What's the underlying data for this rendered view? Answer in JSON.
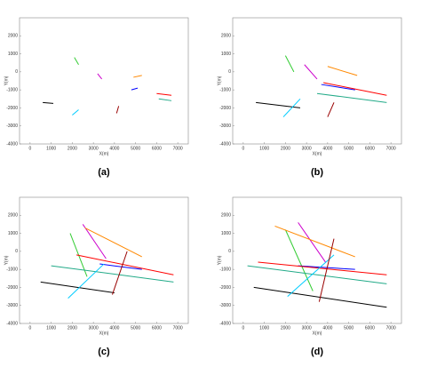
{
  "chart_data": [
    {
      "type": "line",
      "caption": "(a)",
      "x_label": "X(m)",
      "y_label": "Y(m)",
      "xlim": [
        -500,
        7500
      ],
      "ylim": [
        -4000,
        3000
      ],
      "xticks": [
        0,
        1000,
        2000,
        3000,
        4000,
        5000,
        6000,
        7000
      ],
      "yticks": [
        -4000,
        -3000,
        -2000,
        -1000,
        0,
        1000,
        2000
      ],
      "series": [
        {
          "color": "#33cc33",
          "x": [
            2100,
            2300
          ],
          "values": [
            800,
            400
          ]
        },
        {
          "color": "#cc00cc",
          "x": [
            3200,
            3400
          ],
          "values": [
            -100,
            -400
          ]
        },
        {
          "color": "#ff8800",
          "x": [
            4900,
            5300
          ],
          "values": [
            -300,
            -200
          ]
        },
        {
          "color": "#0000ff",
          "x": [
            4800,
            5100
          ],
          "values": [
            -1000,
            -900
          ]
        },
        {
          "color": "#ff0000",
          "x": [
            6000,
            6700
          ],
          "values": [
            -1200,
            -1300
          ]
        },
        {
          "color": "#22aa88",
          "x": [
            6100,
            6700
          ],
          "values": [
            -1500,
            -1600
          ]
        },
        {
          "color": "#000000",
          "x": [
            600,
            1100
          ],
          "values": [
            -1700,
            -1750
          ]
        },
        {
          "color": "#00ccff",
          "x": [
            2000,
            2300
          ],
          "values": [
            -2400,
            -2100
          ]
        },
        {
          "color": "#990000",
          "x": [
            4100,
            4200
          ],
          "values": [
            -2300,
            -1900
          ]
        }
      ]
    },
    {
      "type": "line",
      "caption": "(b)",
      "x_label": "X(m)",
      "y_label": "Y(m)",
      "xlim": [
        -500,
        7500
      ],
      "ylim": [
        -4000,
        3000
      ],
      "xticks": [
        0,
        1000,
        2000,
        3000,
        4000,
        5000,
        6000,
        7000
      ],
      "yticks": [
        -4000,
        -3000,
        -2000,
        -1000,
        0,
        1000,
        2000
      ],
      "series": [
        {
          "color": "#33cc33",
          "x": [
            2000,
            2400
          ],
          "values": [
            900,
            0
          ]
        },
        {
          "color": "#cc00cc",
          "x": [
            2900,
            3500
          ],
          "values": [
            400,
            -400
          ]
        },
        {
          "color": "#ff8800",
          "x": [
            4000,
            5400
          ],
          "values": [
            300,
            -200
          ]
        },
        {
          "color": "#0000ff",
          "x": [
            3700,
            5300
          ],
          "values": [
            -700,
            -1000
          ]
        },
        {
          "color": "#ff0000",
          "x": [
            3800,
            6800
          ],
          "values": [
            -600,
            -1300
          ]
        },
        {
          "color": "#22aa88",
          "x": [
            3500,
            6800
          ],
          "values": [
            -1200,
            -1700
          ]
        },
        {
          "color": "#000000",
          "x": [
            600,
            2700
          ],
          "values": [
            -1700,
            -2000
          ]
        },
        {
          "color": "#00ccff",
          "x": [
            1900,
            2700
          ],
          "values": [
            -2500,
            -1500
          ]
        },
        {
          "color": "#990000",
          "x": [
            4000,
            4300
          ],
          "values": [
            -2500,
            -1700
          ]
        }
      ]
    },
    {
      "type": "line",
      "caption": "(c)",
      "x_label": "X(m)",
      "y_label": "Y(m)",
      "xlim": [
        -500,
        7500
      ],
      "ylim": [
        -4000,
        3000
      ],
      "xticks": [
        0,
        1000,
        2000,
        3000,
        4000,
        5000,
        6000,
        7000
      ],
      "yticks": [
        -4000,
        -3000,
        -2000,
        -1000,
        0,
        1000,
        2000
      ],
      "series": [
        {
          "color": "#33cc33",
          "x": [
            1900,
            2700
          ],
          "values": [
            1000,
            -1400
          ]
        },
        {
          "color": "#cc00cc",
          "x": [
            2500,
            3600
          ],
          "values": [
            1500,
            -400
          ]
        },
        {
          "color": "#ff8800",
          "x": [
            2600,
            5300
          ],
          "values": [
            1300,
            -300
          ]
        },
        {
          "color": "#0000ff",
          "x": [
            3300,
            5300
          ],
          "values": [
            -700,
            -1000
          ]
        },
        {
          "color": "#ff0000",
          "x": [
            2200,
            6800
          ],
          "values": [
            -200,
            -1300
          ]
        },
        {
          "color": "#22aa88",
          "x": [
            1000,
            6800
          ],
          "values": [
            -800,
            -1700
          ]
        },
        {
          "color": "#000000",
          "x": [
            500,
            4000
          ],
          "values": [
            -1700,
            -2300
          ]
        },
        {
          "color": "#00ccff",
          "x": [
            1800,
            3500
          ],
          "values": [
            -2600,
            -700
          ]
        },
        {
          "color": "#990000",
          "x": [
            3900,
            4600
          ],
          "values": [
            -2400,
            0
          ]
        }
      ]
    },
    {
      "type": "line",
      "caption": "(d)",
      "x_label": "X(m)",
      "y_label": "Y(m)",
      "xlim": [
        -500,
        7500
      ],
      "ylim": [
        -4000,
        3000
      ],
      "xticks": [
        0,
        1000,
        2000,
        3000,
        4000,
        5000,
        6000,
        7000
      ],
      "yticks": [
        -4000,
        -3000,
        -2000,
        -1000,
        0,
        1000,
        2000
      ],
      "series": [
        {
          "color": "#33cc33",
          "x": [
            2000,
            3300
          ],
          "values": [
            1200,
            -2200
          ]
        },
        {
          "color": "#cc00cc",
          "x": [
            2600,
            3900
          ],
          "values": [
            1600,
            -600
          ]
        },
        {
          "color": "#ff8800",
          "x": [
            1500,
            5300
          ],
          "values": [
            1400,
            -300
          ]
        },
        {
          "color": "#0000ff",
          "x": [
            2600,
            5300
          ],
          "values": [
            -800,
            -1000
          ]
        },
        {
          "color": "#ff0000",
          "x": [
            700,
            6800
          ],
          "values": [
            -600,
            -1300
          ]
        },
        {
          "color": "#22aa88",
          "x": [
            200,
            6800
          ],
          "values": [
            -800,
            -1800
          ]
        },
        {
          "color": "#000000",
          "x": [
            500,
            6800
          ],
          "values": [
            -2000,
            -3100
          ]
        },
        {
          "color": "#00ccff",
          "x": [
            2100,
            4300
          ],
          "values": [
            -2500,
            -200
          ]
        },
        {
          "color": "#990000",
          "x": [
            3600,
            4300
          ],
          "values": [
            -2800,
            700
          ]
        }
      ]
    }
  ]
}
